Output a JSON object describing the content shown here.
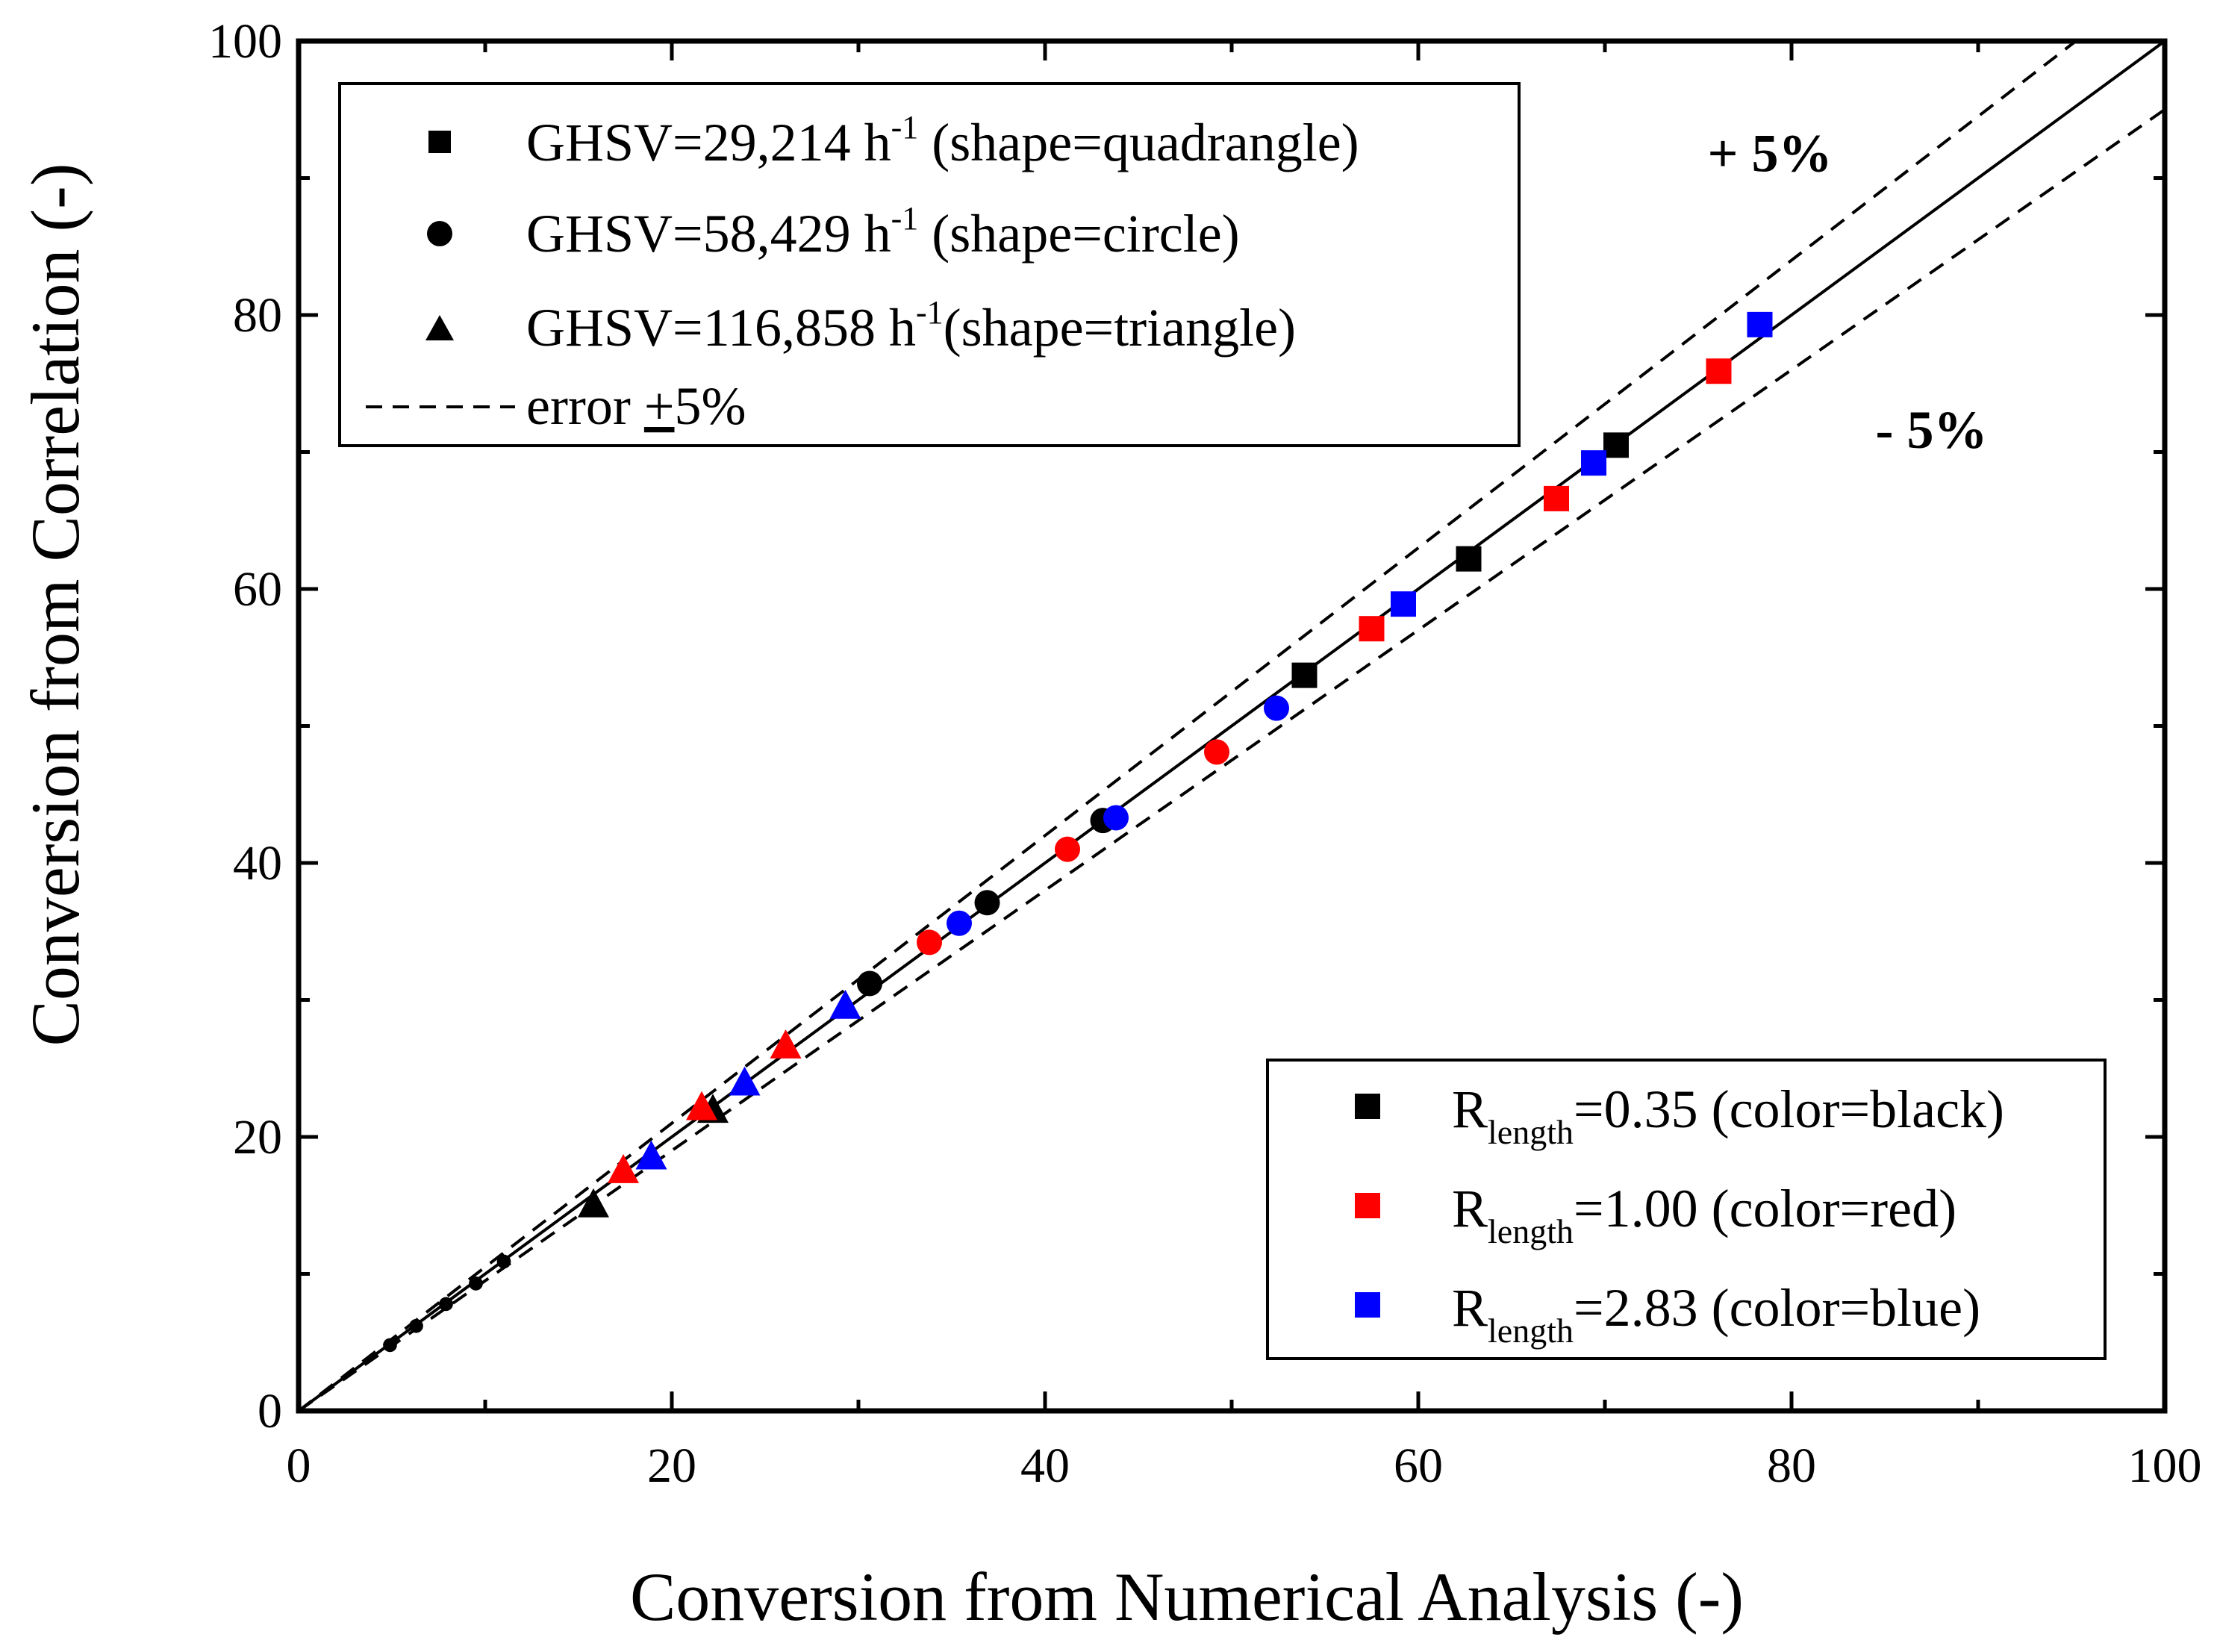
{
  "chart_data": {
    "type": "scatter",
    "xlabel": "Conversion from Numerical Analysis (-)",
    "ylabel": "Conversion from Correlation (-)",
    "xlim": [
      0,
      100
    ],
    "ylim": [
      0,
      100
    ],
    "xticks": [
      "0",
      "20",
      "40",
      "60",
      "80",
      "100"
    ],
    "yticks": [
      "0",
      "20",
      "40",
      "60",
      "80",
      "100"
    ],
    "reference_lines": [
      {
        "name": "parity",
        "style": "solid",
        "slope": 1.0
      },
      {
        "name": "+5%",
        "style": "dashed",
        "slope": 1.05
      },
      {
        "name": "-5%",
        "style": "dashed",
        "slope": 0.95
      }
    ],
    "annotations": [
      {
        "text": "+ 5%",
        "x": 75.5,
        "y": 90.5
      },
      {
        "text": "- 5%",
        "x": 84.5,
        "y": 70.3
      }
    ],
    "colors": {
      "black": "#000000",
      "red": "#ff0000",
      "blue": "#0000ff"
    },
    "shape_legend": {
      "items": [
        {
          "marker": "square",
          "main": "GHSV=29,214 h",
          "sup": "-1",
          "rest": " (shape=quadrangle)"
        },
        {
          "marker": "circle",
          "main": "GHSV=58,429 h",
          "sup": "-1",
          "rest": " (shape=circle)"
        },
        {
          "marker": "triangle",
          "main": "GHSV=116,858 h",
          "sup": "-1",
          "rest": "(shape=triangle)"
        }
      ],
      "error": {
        "marker": "dashed-line",
        "prefix": "error ",
        "pm": "+",
        "suffix": "5%"
      }
    },
    "color_legend": {
      "items": [
        {
          "color": "black",
          "main": "R",
          "sub": "length",
          "rest": "=0.35 (color=black)"
        },
        {
          "color": "red",
          "main": "R",
          "sub": "length",
          "rest": "=1.00 (color=red)"
        },
        {
          "color": "blue",
          "main": "R",
          "sub": "length",
          "rest": "=2.83 (color=blue)"
        }
      ]
    },
    "series": [
      {
        "name": "GHSV=29,214, R=0.35",
        "shape": "square",
        "color": "black",
        "points": [
          [
            53.9,
            53.7
          ],
          [
            62.7,
            62.2
          ],
          [
            70.6,
            70.5
          ]
        ]
      },
      {
        "name": "GHSV=29,214, R=1.00",
        "shape": "square",
        "color": "red",
        "points": [
          [
            57.5,
            57.1
          ],
          [
            67.4,
            66.6
          ],
          [
            76.1,
            75.9
          ]
        ]
      },
      {
        "name": "GHSV=29,214, R=2.83",
        "shape": "square",
        "color": "blue",
        "points": [
          [
            59.2,
            58.9
          ],
          [
            69.4,
            69.2
          ],
          [
            78.3,
            79.3
          ]
        ]
      },
      {
        "name": "GHSV=58,429, R=0.35",
        "shape": "circle",
        "color": "black",
        "points": [
          [
            30.6,
            31.2
          ],
          [
            36.9,
            37.1
          ],
          [
            43.1,
            43.1
          ]
        ]
      },
      {
        "name": "GHSV=58,429, R=1.00",
        "shape": "circle",
        "color": "red",
        "points": [
          [
            33.8,
            34.2
          ],
          [
            41.2,
            41.0
          ],
          [
            49.2,
            48.1
          ]
        ]
      },
      {
        "name": "GHSV=58,429, R=2.83",
        "shape": "circle",
        "color": "blue",
        "points": [
          [
            35.4,
            35.6
          ],
          [
            43.8,
            43.3
          ],
          [
            52.4,
            51.3
          ]
        ]
      },
      {
        "name": "GHSV=116,858, R=0.35",
        "shape": "triangle",
        "color": "black",
        "points": [
          [
            15.8,
            15.1
          ],
          [
            22.2,
            22.0
          ]
        ]
      },
      {
        "name": "GHSV=116,858, R=1.00",
        "shape": "triangle",
        "color": "red",
        "points": [
          [
            17.4,
            17.6
          ],
          [
            21.6,
            22.2
          ],
          [
            26.1,
            26.7
          ]
        ]
      },
      {
        "name": "GHSV=116,858, R=2.83",
        "shape": "triangle",
        "color": "blue",
        "points": [
          [
            18.9,
            18.6
          ],
          [
            23.9,
            24.0
          ],
          [
            29.3,
            29.6
          ]
        ]
      },
      {
        "name": "low-conversion points",
        "shape": "circle",
        "color": "black",
        "small": true,
        "points": [
          [
            4.9,
            4.8
          ],
          [
            6.3,
            6.2
          ],
          [
            7.9,
            7.8
          ],
          [
            9.5,
            9.3
          ],
          [
            11.0,
            10.9
          ]
        ]
      }
    ]
  }
}
